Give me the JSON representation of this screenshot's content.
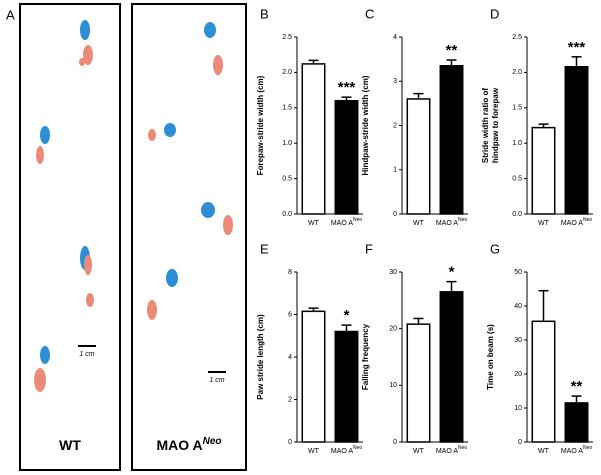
{
  "panel_a": {
    "label": "A",
    "groups": [
      {
        "text": "WT"
      },
      {
        "text": "MAO A",
        "sup": "Neo"
      }
    ],
    "scale_bar": "1 cm"
  },
  "chart_data": [
    {
      "type": "bar",
      "panel": "B",
      "ylabel": "Forepaw-stride width (cm)",
      "categories": [
        "WT",
        "MAO A"
      ],
      "category_superscripts": [
        null,
        "Neo"
      ],
      "values": [
        2.12,
        1.6
      ],
      "errors": [
        0.05,
        0.05
      ],
      "colors": [
        "#ffffff",
        "#000000"
      ],
      "significance": [
        null,
        "***"
      ],
      "ylim": [
        0,
        2.5
      ],
      "yticks": [
        {
          "value": 0,
          "label": "0.0"
        },
        {
          "value": 0.5,
          "label": "0.5"
        },
        {
          "value": 1,
          "label": "1.0"
        },
        {
          "value": 1.5,
          "label": "1.5"
        },
        {
          "value": 2,
          "label": "2.0"
        },
        {
          "value": 2.5,
          "label": "2.5"
        }
      ]
    },
    {
      "type": "bar",
      "panel": "C",
      "ylabel": "Hindpaw-stride width (cm)",
      "categories": [
        "WT",
        "MAO A"
      ],
      "category_superscripts": [
        null,
        "Neo"
      ],
      "values": [
        2.6,
        3.35
      ],
      "errors": [
        0.12,
        0.13
      ],
      "colors": [
        "#ffffff",
        "#000000"
      ],
      "significance": [
        null,
        "**"
      ],
      "ylim": [
        0,
        4
      ],
      "yticks": [
        0,
        1,
        2,
        3,
        4
      ]
    },
    {
      "type": "bar",
      "panel": "D",
      "ylabel": [
        "Stride width ratio of",
        "hindpaw to forepaw"
      ],
      "categories": [
        "WT",
        "MAO A"
      ],
      "category_superscripts": [
        null,
        "Neo"
      ],
      "values": [
        1.22,
        2.08
      ],
      "errors": [
        0.05,
        0.14
      ],
      "colors": [
        "#ffffff",
        "#000000"
      ],
      "significance": [
        null,
        "***"
      ],
      "ylim": [
        0,
        2.5
      ],
      "yticks": [
        {
          "value": 0,
          "label": "0.0"
        },
        {
          "value": 0.5,
          "label": "0.5"
        },
        {
          "value": 1,
          "label": "1.0"
        },
        {
          "value": 1.5,
          "label": "1.5"
        },
        {
          "value": 2,
          "label": "2.0"
        },
        {
          "value": 2.5,
          "label": "2.5"
        }
      ]
    },
    {
      "type": "bar",
      "panel": "E",
      "ylabel": "Paw stride length (cm)",
      "categories": [
        "WT",
        "MAO A"
      ],
      "category_superscripts": [
        null,
        "Neo"
      ],
      "values": [
        6.15,
        5.2
      ],
      "errors": [
        0.15,
        0.3
      ],
      "colors": [
        "#ffffff",
        "#000000"
      ],
      "significance": [
        null,
        "*"
      ],
      "ylim": [
        0,
        8
      ],
      "yticks": [
        0,
        2,
        4,
        6,
        8
      ]
    },
    {
      "type": "bar",
      "panel": "F",
      "ylabel": "Falling frequency",
      "categories": [
        "WT",
        "MAO A"
      ],
      "category_superscripts": [
        null,
        "Neo"
      ],
      "values": [
        20.8,
        26.5
      ],
      "errors": [
        1.0,
        1.8
      ],
      "colors": [
        "#ffffff",
        "#000000"
      ],
      "significance": [
        null,
        "*"
      ],
      "ylim": [
        0,
        30
      ],
      "yticks": [
        0,
        10,
        20,
        30
      ]
    },
    {
      "type": "bar",
      "panel": "G",
      "ylabel": "Time on beam (s)",
      "categories": [
        "WT",
        "MAO A"
      ],
      "category_superscripts": [
        null,
        "Neo"
      ],
      "values": [
        35.5,
        11.5
      ],
      "errors": [
        9,
        2
      ],
      "colors": [
        "#ffffff",
        "#000000"
      ],
      "significance": [
        null,
        "**"
      ],
      "ylim": [
        0,
        50
      ],
      "yticks": [
        0,
        10,
        20,
        30,
        40,
        50
      ]
    }
  ]
}
